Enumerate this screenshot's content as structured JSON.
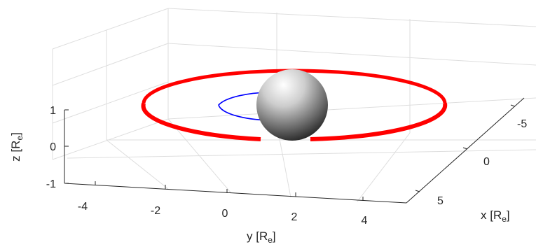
{
  "chart_data": {
    "type": "3d-line",
    "title": "",
    "axes": {
      "x": {
        "label": "x",
        "unit": "R",
        "unit_sub": "e",
        "ticks": [
          -5,
          0,
          5
        ],
        "tick_labels": [
          "-5",
          "0",
          "5"
        ]
      },
      "y": {
        "label": "y",
        "unit": "R",
        "unit_sub": "e",
        "ticks": [
          -4,
          -2,
          0,
          2,
          4
        ],
        "tick_labels": [
          "-4",
          "-2",
          "0",
          "2",
          "4"
        ]
      },
      "z": {
        "label": "z",
        "unit": "R",
        "unit_sub": "e",
        "ticks": [
          -1,
          0,
          1
        ],
        "tick_labels": [
          "-1",
          "0",
          "1"
        ]
      }
    },
    "grid": true,
    "box": "back-panes",
    "series": [
      {
        "kind": "orbit",
        "color": "#ff0000",
        "shape": "circle",
        "radius": 5,
        "z": 0,
        "gaps_near_earth": true
      },
      {
        "kind": "orbit",
        "color": "#0000ff",
        "shape": "arc",
        "radius": 2,
        "z": 0,
        "visible_side": "behind-earth"
      }
    ],
    "sphere": {
      "name": "Earth",
      "radius": 1,
      "center": [
        0,
        0,
        0
      ],
      "shading": "grayscale"
    }
  }
}
